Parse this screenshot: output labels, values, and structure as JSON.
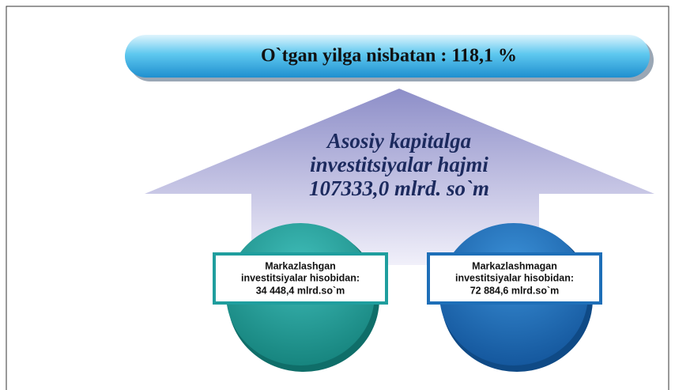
{
  "header": {
    "title": "O`tgan yilga nisbatan : 118,1 %"
  },
  "arrow": {
    "lines": [
      "Asosiy kapitalga",
      "investitsiyalar hajmi",
      "107333,0 mlrd. so`m"
    ]
  },
  "circles": [
    {
      "lines": [
        "Markazlashgan",
        "investitsiyalar hisobidan:",
        "34 448,4 mlrd.so`m"
      ]
    },
    {
      "lines": [
        "Markazlashmagan",
        "investitsiyalar hisobidan:",
        "72 884,6 mlrd.so`m"
      ]
    }
  ]
}
